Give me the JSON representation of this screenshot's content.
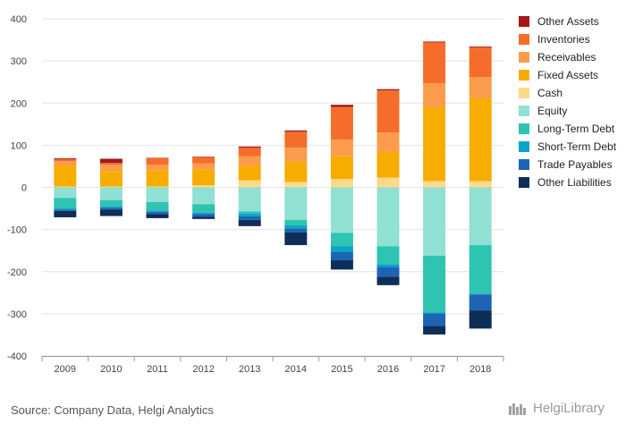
{
  "chart_data": {
    "type": "bar",
    "stacked": true,
    "categories": [
      "2009",
      "2010",
      "2011",
      "2012",
      "2013",
      "2014",
      "2015",
      "2016",
      "2017",
      "2018"
    ],
    "ylim": [
      -400,
      400
    ],
    "yticks": [
      400,
      300,
      200,
      100,
      0,
      -100,
      -200,
      -300,
      -400
    ],
    "legend_position": "right",
    "grid": "horizontal",
    "series": [
      {
        "name": "Cash",
        "color": "#FDD98A",
        "values": [
          2,
          2,
          2,
          5,
          17,
          13,
          20,
          23,
          15,
          15
        ]
      },
      {
        "name": "Fixed Assets",
        "color": "#F7AD00",
        "values": [
          50,
          37,
          38,
          38,
          34,
          48,
          55,
          62,
          175,
          197
        ]
      },
      {
        "name": "Receivables",
        "color": "#FB9C4C",
        "values": [
          10,
          15,
          14,
          14,
          23,
          33,
          38,
          45,
          57,
          50
        ]
      },
      {
        "name": "Inventories",
        "color": "#F56D2A",
        "values": [
          5,
          4,
          15,
          15,
          20,
          38,
          78,
          100,
          97,
          70
        ]
      },
      {
        "name": "Other Assets",
        "color": "#A31A16",
        "values": [
          2,
          10,
          1,
          1,
          3,
          3,
          5,
          3,
          2,
          2
        ]
      },
      {
        "name": "Equity",
        "color": "#90E0D3",
        "values": [
          -25,
          -30,
          -35,
          -40,
          -57,
          -77,
          -108,
          -140,
          -162,
          -137
        ]
      },
      {
        "name": "Long-Term Debt",
        "color": "#2DC4B1",
        "values": [
          -25,
          -15,
          -20,
          -20,
          -5,
          -13,
          -32,
          -42,
          -135,
          -115
        ]
      },
      {
        "name": "Short-Term Debt",
        "color": "#0BA5C9",
        "values": [
          -3,
          -3,
          -3,
          -3,
          -7,
          -7,
          -13,
          -7,
          -2,
          -2
        ]
      },
      {
        "name": "Trade Payables",
        "color": "#1D64B5",
        "values": [
          -3,
          -5,
          -5,
          -7,
          -8,
          -10,
          -20,
          -23,
          -30,
          -38
        ]
      },
      {
        "name": "Other Liabilities",
        "color": "#0F2E57",
        "values": [
          -15,
          -15,
          -10,
          -5,
          -15,
          -30,
          -22,
          -20,
          -20,
          -43
        ]
      }
    ],
    "legend": [
      {
        "label": "Other Assets",
        "color": "#A31A16"
      },
      {
        "label": "Inventories",
        "color": "#F56D2A"
      },
      {
        "label": "Receivables",
        "color": "#FB9C4C"
      },
      {
        "label": "Fixed Assets",
        "color": "#F7AD00"
      },
      {
        "label": "Cash",
        "color": "#FDD98A"
      },
      {
        "label": "Equity",
        "color": "#90E0D3"
      },
      {
        "label": "Long-Term Debt",
        "color": "#2DC4B1"
      },
      {
        "label": "Short-Term Debt",
        "color": "#0BA5C9"
      },
      {
        "label": "Trade Payables",
        "color": "#1D64B5"
      },
      {
        "label": "Other Liabilities",
        "color": "#0F2E57"
      }
    ]
  },
  "footer": {
    "source": "Source: Company Data, Helgi Analytics",
    "brand": "HelgiLibrary"
  }
}
